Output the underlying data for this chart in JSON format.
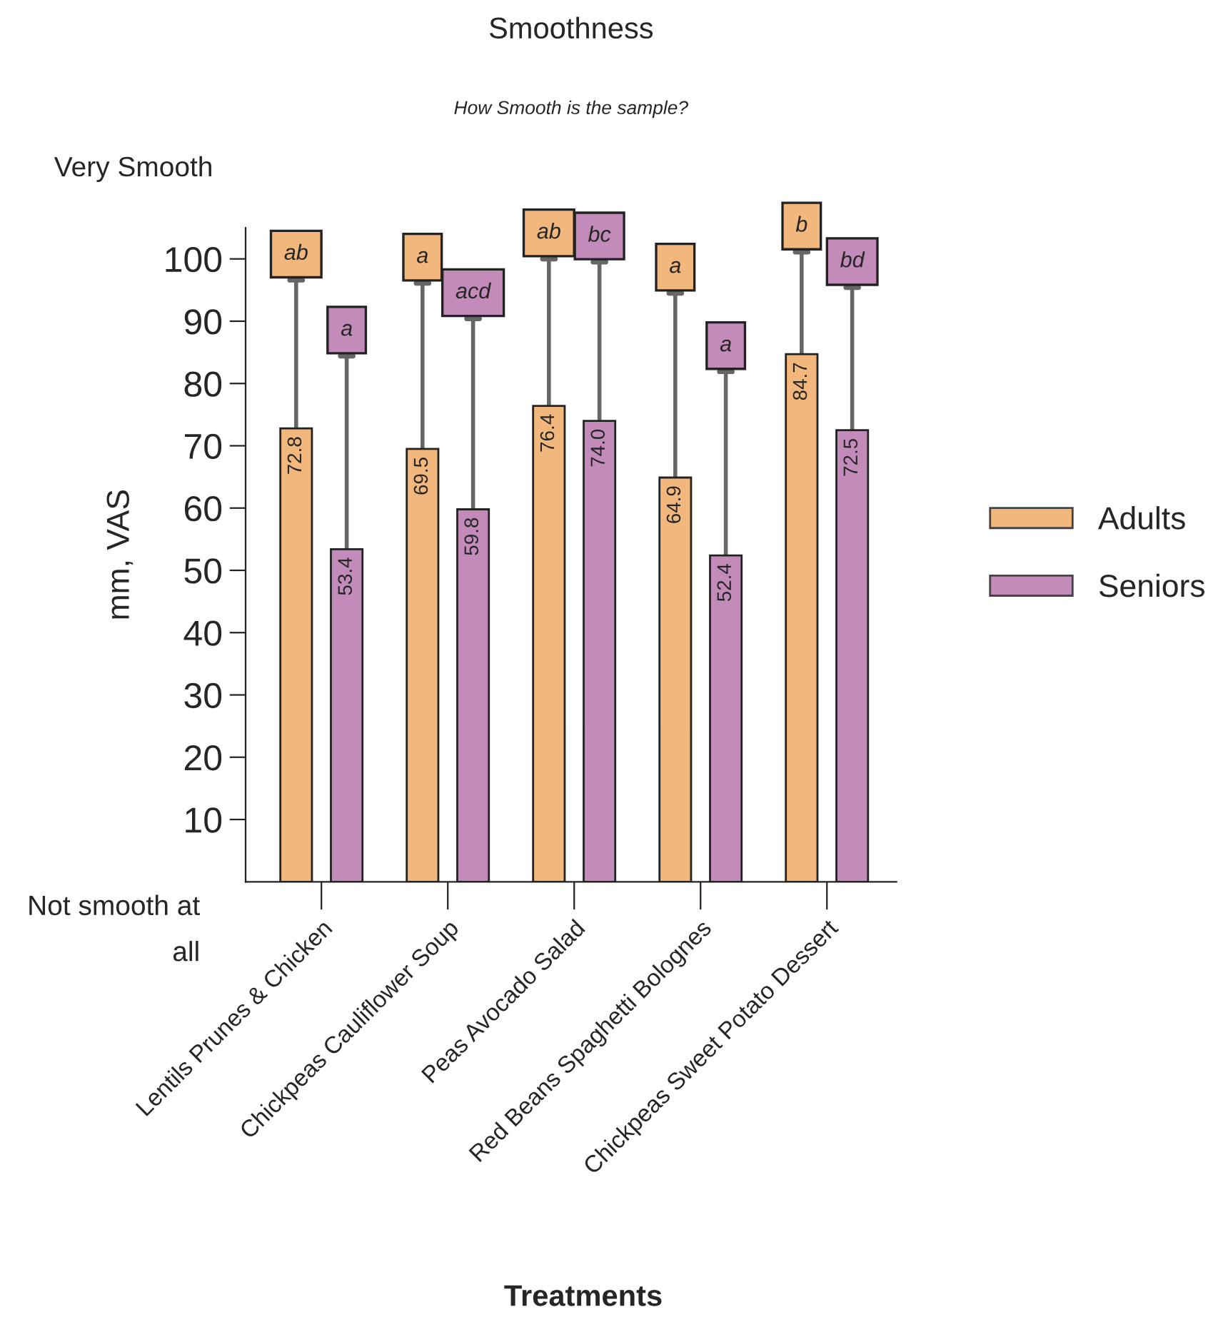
{
  "chart_data": {
    "type": "bar",
    "title": "Smoothness",
    "subtitle": "How Smooth is the sample?",
    "xlabel": "Treatments",
    "ylabel": "mm, VAS",
    "categories": [
      "Lentils Prunes & Chicken",
      "Chickpeas Cauliflower Soup",
      "Peas Avocado Salad",
      "Red Beans Spaghetti Bolognes",
      "Chickpeas Sweet Potato Dessert"
    ],
    "series": [
      {
        "name": "Adults",
        "color": "#f2b77c",
        "values": [
          72.8,
          69.5,
          76.4,
          64.9,
          84.7
        ],
        "errors": [
          [
            72.8,
            96.6
          ],
          [
            69.5,
            96.1
          ],
          [
            76.4,
            100.0
          ],
          [
            64.9,
            94.5
          ],
          [
            84.7,
            101.1
          ]
        ],
        "value_labels": [
          "72.8",
          "69.5",
          "76.4",
          "64.9",
          "84.7"
        ]
      },
      {
        "name": "Seniors",
        "color": "#c28bb9",
        "values": [
          53.4,
          59.8,
          74.0,
          52.4,
          72.5
        ],
        "errors": [
          [
            53.4,
            84.4
          ],
          [
            59.8,
            90.4
          ],
          [
            74.0,
            99.5
          ],
          [
            52.4,
            81.9
          ],
          [
            72.5,
            95.4
          ]
        ],
        "value_labels": [
          "53.4",
          "59.8",
          "74.0",
          "52.4",
          "72.5"
        ]
      }
    ],
    "ylim": [
      0,
      105
    ],
    "yticks": [
      10,
      20,
      30,
      40,
      50,
      60,
      70,
      80,
      90,
      100
    ],
    "legend": "right",
    "grid": false,
    "annotations": [
      "Very Smooth",
      "Not smooth at all",
      "ab",
      "a",
      "a",
      "acd",
      "ab",
      "bc",
      "a",
      "a",
      "b",
      "bd"
    ]
  }
}
